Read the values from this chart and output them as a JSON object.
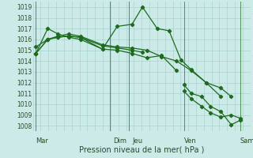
{
  "title": "Pression niveau de la mer( hPa )",
  "bg_color": "#cceae8",
  "grid_color": "#aad4d0",
  "line_color": "#1e6b1e",
  "ylim": [
    1007.5,
    1019.5
  ],
  "yticks": [
    1008,
    1009,
    1010,
    1011,
    1012,
    1013,
    1014,
    1015,
    1016,
    1017,
    1018,
    1019
  ],
  "xlim": [
    -0.2,
    14.5
  ],
  "xtick_labels_day": [
    {
      "label": "Mar",
      "x": 0
    },
    {
      "label": "Dim",
      "x": 5.2
    },
    {
      "label": "Jeu",
      "x": 6.5
    },
    {
      "label": "Ven",
      "x": 10.0
    },
    {
      "label": "Sam",
      "x": 13.8
    }
  ],
  "vlines_x": [
    0.0,
    5.0,
    6.3,
    10.0,
    13.8
  ],
  "series": [
    {
      "x": [
        0.0,
        0.8,
        1.5,
        2.2,
        3.0,
        4.5,
        5.5,
        6.5,
        7.2,
        8.2,
        9.0,
        9.8,
        10.5,
        11.5,
        12.5,
        13.2
      ],
      "y": [
        1014.7,
        1017.0,
        1016.5,
        1016.2,
        1016.0,
        1015.1,
        1017.2,
        1017.4,
        1019.0,
        1017.0,
        1016.8,
        1014.1,
        1013.2,
        1012.0,
        1011.5,
        1010.7
      ]
    },
    {
      "x": [
        0.0,
        0.8,
        1.5,
        2.2,
        3.0,
        4.5,
        5.5,
        6.5,
        7.5,
        8.5,
        9.5,
        10.5,
        11.5,
        12.5
      ],
      "y": [
        1015.3,
        1016.0,
        1016.3,
        1016.5,
        1016.3,
        1015.5,
        1015.3,
        1015.2,
        1015.0,
        1014.4,
        1014.0,
        1013.1,
        1012.0,
        1010.7
      ]
    },
    {
      "x": [
        0.0,
        0.8,
        1.5,
        2.2,
        3.0,
        4.5,
        5.5,
        6.5,
        7.5,
        8.5,
        9.5
      ],
      "y": [
        1014.7,
        1016.0,
        1016.2,
        1016.3,
        1016.2,
        1015.1,
        1015.0,
        1014.7,
        1014.3,
        1014.5,
        1013.1
      ]
    },
    {
      "x": [
        0.0,
        0.8,
        1.5,
        2.2,
        3.0,
        4.5,
        5.5,
        6.5,
        7.2
      ],
      "y": [
        1014.7,
        1016.0,
        1016.2,
        1016.3,
        1016.2,
        1015.4,
        1015.2,
        1015.0,
        1014.8
      ]
    },
    {
      "x": [
        10.0,
        10.5,
        11.2,
        11.8,
        12.5,
        13.2,
        13.8
      ],
      "y": [
        1011.8,
        1011.0,
        1010.7,
        1009.8,
        1009.3,
        1008.1,
        1008.5
      ]
    },
    {
      "x": [
        10.0,
        10.5,
        11.2,
        11.8,
        12.5,
        13.2,
        13.8
      ],
      "y": [
        1011.2,
        1010.5,
        1009.8,
        1009.2,
        1008.8,
        1009.0,
        1008.7
      ]
    }
  ]
}
